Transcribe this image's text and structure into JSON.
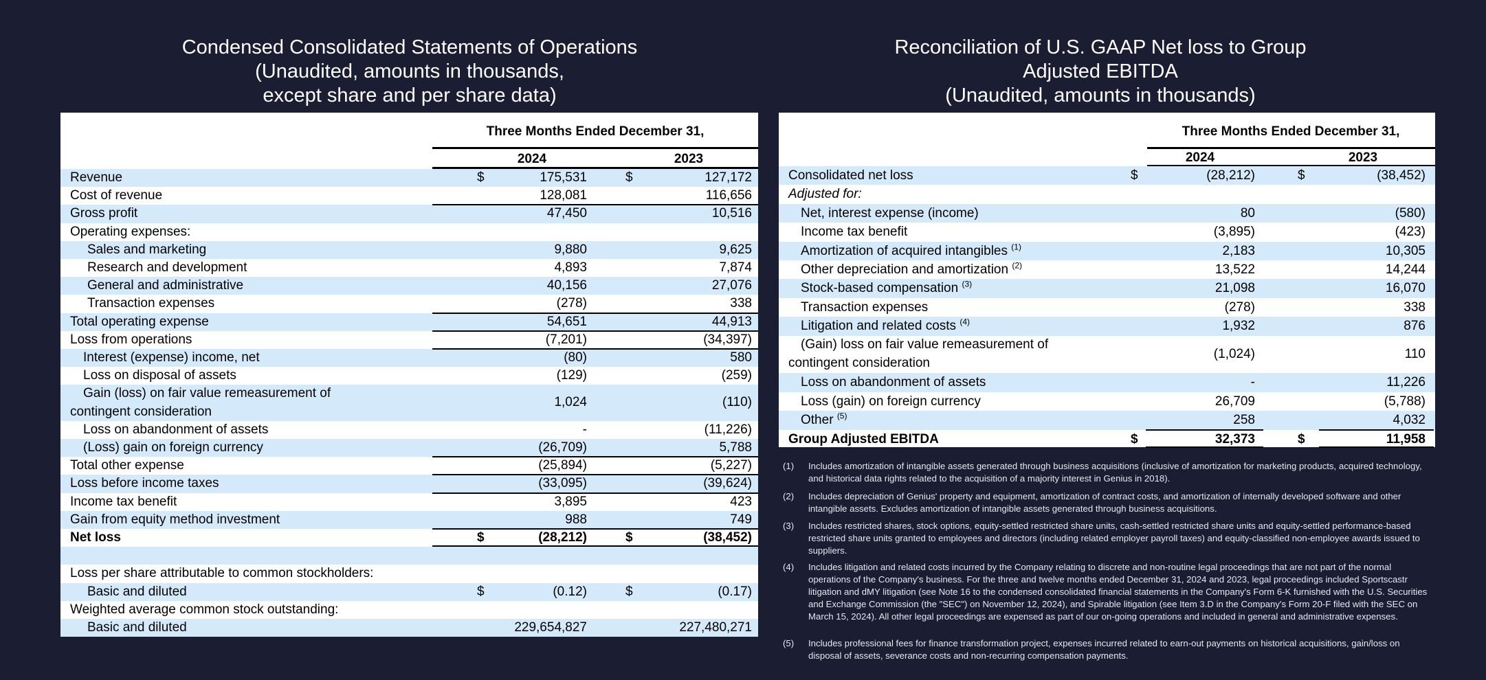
{
  "left": {
    "title_lines": [
      "Condensed Consolidated Statements of Operations",
      "(Unaudited, amounts in thousands,",
      "except share and per share data)"
    ],
    "period_header": "Three Months Ended December 31,",
    "years": [
      "2024",
      "2023"
    ],
    "rows": [
      {
        "label": "Revenue",
        "d1": "$",
        "v1": "175,531",
        "d2": "$",
        "v2": "127,172",
        "indent": 0
      },
      {
        "label": "Cost of revenue",
        "v1": "128,081",
        "v2": "116,656",
        "indent": 0
      },
      {
        "label": "Gross profit",
        "v1": "47,450",
        "v2": "10,516",
        "indent": 0,
        "line_top": true
      },
      {
        "label": "Operating expenses:",
        "indent": 0
      },
      {
        "label": "Sales and marketing",
        "v1": "9,880",
        "v2": "9,625",
        "indent": 2
      },
      {
        "label": "Research and development",
        "v1": "4,893",
        "v2": "7,874",
        "indent": 2
      },
      {
        "label": "General and administrative",
        "v1": "40,156",
        "v2": "27,076",
        "indent": 2
      },
      {
        "label": "Transaction expenses",
        "v1": "(278)",
        "v2": "338",
        "indent": 2
      },
      {
        "label": "Total operating expense",
        "v1": "54,651",
        "v2": "44,913",
        "indent": 0,
        "line_top": true
      },
      {
        "label": "Loss from operations",
        "v1": "(7,201)",
        "v2": "(34,397)",
        "indent": 0,
        "line_top": true
      },
      {
        "label": "Interest (expense) income, net",
        "v1": "(80)",
        "v2": "580",
        "indent": 1,
        "line_top": true
      },
      {
        "label": "Loss on disposal of assets",
        "v1": "(129)",
        "v2": "(259)",
        "indent": 1
      },
      {
        "label": "Gain (loss) on fair value remeasurement of",
        "label2": "contingent consideration",
        "v1": "1,024",
        "v2": "(110)",
        "indent": 1,
        "span": 2
      },
      {
        "label": "Loss on abandonment of assets",
        "v1": "-",
        "v2": "(11,226)",
        "indent": 1
      },
      {
        "label": "(Loss) gain on foreign currency",
        "v1": "(26,709)",
        "v2": "5,788",
        "indent": 1
      },
      {
        "label": "Total other expense",
        "v1": "(25,894)",
        "v2": "(5,227)",
        "indent": 0,
        "line_top": true
      },
      {
        "label": "Loss before income taxes",
        "v1": "(33,095)",
        "v2": "(39,624)",
        "indent": 0,
        "line_top": true
      },
      {
        "label": "Income tax benefit",
        "v1": "3,895",
        "v2": "423",
        "indent": 0,
        "line_top": true
      },
      {
        "label": "Gain from equity method investment",
        "v1": "988",
        "v2": "749",
        "indent": 0
      },
      {
        "label": "Net loss",
        "d1": "$",
        "v1": "(28,212)",
        "d2": "$",
        "v2": "(38,452)",
        "indent": 0,
        "bold": true,
        "line_top": true,
        "double_bottom": true
      },
      {
        "label": "",
        "indent": 0
      },
      {
        "label": "Loss per share attributable to common stockholders:",
        "indent": 0
      },
      {
        "label": "Basic and diluted",
        "d1": "$",
        "v1": "(0.12)",
        "d2": "$",
        "v2": "(0.17)",
        "indent": 2
      },
      {
        "label": "Weighted average common stock outstanding:",
        "indent": 0
      },
      {
        "label": "Basic and diluted",
        "v1": "229,654,827",
        "v2": "227,480,271",
        "indent": 2
      }
    ]
  },
  "right": {
    "title_lines": [
      "Reconciliation of U.S. GAAP Net loss to Group",
      "Adjusted EBITDA",
      "(Unaudited, amounts in thousands)"
    ],
    "period_header": "Three Months Ended December 31,",
    "years": [
      "2024",
      "2023"
    ],
    "rows": [
      {
        "label": "Consolidated net loss",
        "d1": "$",
        "v1": "(28,212)",
        "d2": "$",
        "v2": "(38,452)",
        "indent": 0
      },
      {
        "label": "Adjusted for:",
        "indent": 0,
        "italic": true
      },
      {
        "label": "Net, interest expense (income)",
        "v1": "80",
        "v2": "(580)",
        "indent": 1
      },
      {
        "label": "Income tax benefit",
        "v1": "(3,895)",
        "v2": "(423)",
        "indent": 1
      },
      {
        "label": "Amortization of acquired intangibles",
        "note": "(1)",
        "v1": "2,183",
        "v2": "10,305",
        "indent": 1
      },
      {
        "label": "Other depreciation and amortization",
        "note": "(2)",
        "v1": "13,522",
        "v2": "14,244",
        "indent": 1
      },
      {
        "label": "Stock-based compensation",
        "note": "(3)",
        "v1": "21,098",
        "v2": "16,070",
        "indent": 1
      },
      {
        "label": "Transaction expenses",
        "v1": "(278)",
        "v2": "338",
        "indent": 1
      },
      {
        "label": "Litigation and related costs",
        "note": "(4)",
        "v1": "1,932",
        "v2": "876",
        "indent": 1
      },
      {
        "label": "(Gain) loss on fair value remeasurement of",
        "label2": "contingent consideration",
        "v1": "(1,024)",
        "v2": "110",
        "indent": 1,
        "span": 2
      },
      {
        "label": "Loss on abandonment of assets",
        "v1": "-",
        "v2": "11,226",
        "indent": 1
      },
      {
        "label": "Loss (gain) on foreign currency",
        "v1": "26,709",
        "v2": "(5,788)",
        "indent": 1
      },
      {
        "label": "Other",
        "note": "(5)",
        "v1": "258",
        "v2": "4,032",
        "indent": 1
      },
      {
        "label": "Group Adjusted EBITDA",
        "d1": "$",
        "v1": "32,373",
        "d2": "$",
        "v2": "11,958",
        "indent": 0,
        "bold": true,
        "col_lines": true
      }
    ],
    "footnotes": [
      {
        "num": "(1)",
        "text": "Includes amortization of intangible assets generated through business acquisitions (inclusive of amortization for marketing products, acquired technology, and historical data rights related to the acquisition of a majority interest in Genius in 2018)."
      },
      {
        "num": "(2)",
        "text": "Includes depreciation of Genius' property and equipment, amortization of contract costs, and amortization of internally developed software and other intangible assets. Excludes amortization of intangible assets generated through business acquisitions."
      },
      {
        "num": "(3)",
        "text": "Includes restricted shares, stock options, equity-settled restricted share units, cash-settled restricted share units and equity-settled performance-based restricted share units granted to employees and directors (including related employer payroll taxes) and equity-classified non-employee awards issued to suppliers."
      },
      {
        "num": "(4)",
        "text": "Includes litigation and related costs incurred by the Company relating to discrete and non-routine legal proceedings that are not part of the normal operations of the Company's business. For the three and twelve months ended December 31, 2024 and 2023, legal proceedings included Sportscastr litigation and dMY litigation (see Note 16 to the condensed consolidated financial statements in the Company's Form 6-K furnished with the U.S. Securities and Exchange Commission (the \"SEC\") on November 12, 2024), and Spirable litigation (see Item 3.D in the Company's Form 20-F filed with the SEC on March 15, 2024). All other legal proceedings are expensed as part of our on-going operations and included in general and administrative expenses."
      },
      {
        "num": "(5)",
        "text": "Includes professional fees for finance transformation project, expenses incurred related to earn-out payments on historical acquisitions, gain/loss on disposal of assets, severance costs and non-recurring compensation payments."
      }
    ]
  }
}
